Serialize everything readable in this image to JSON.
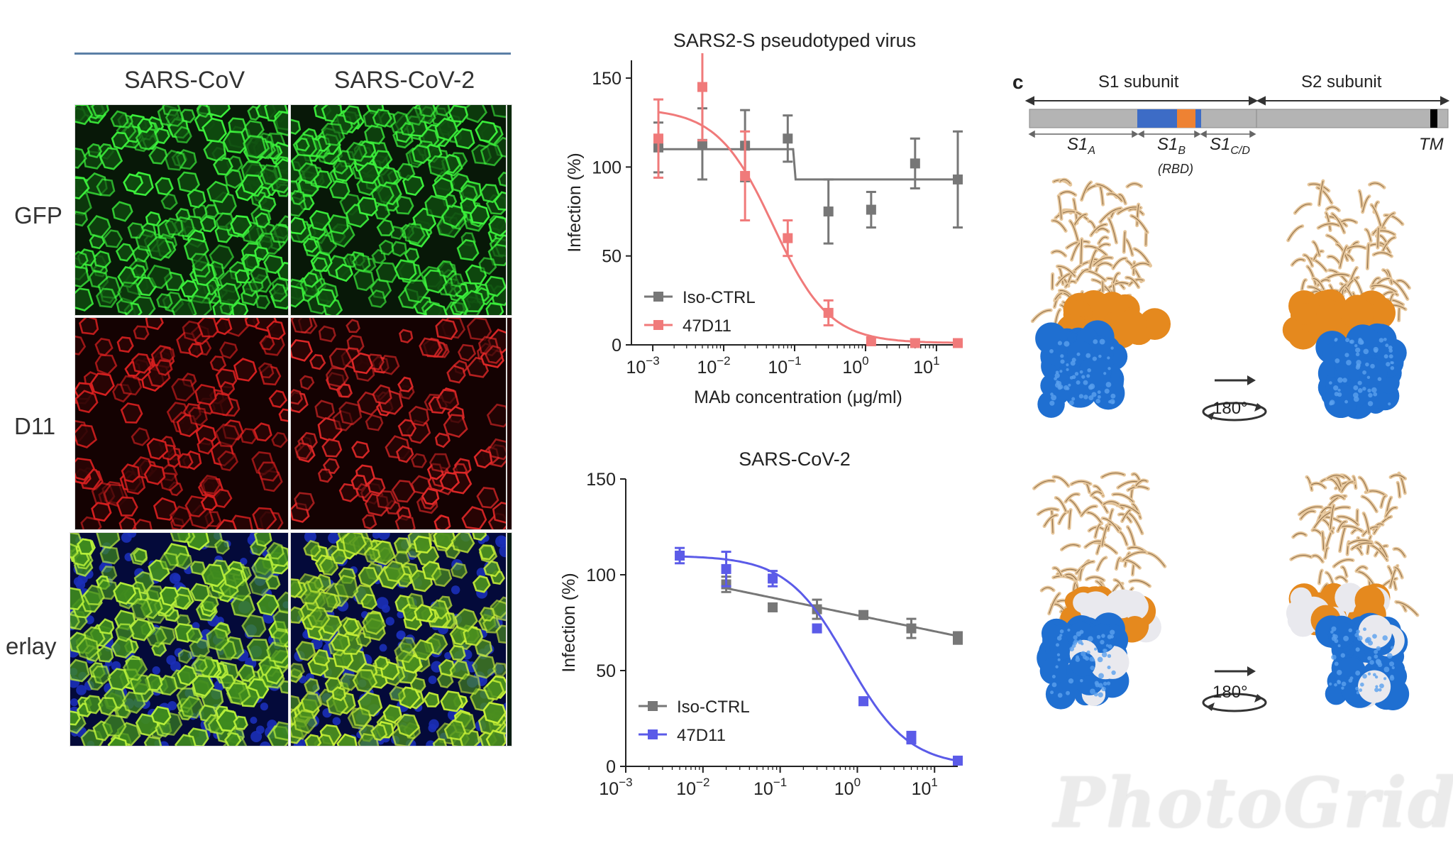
{
  "microscopy": {
    "columns": [
      "SARS-CoV",
      "SARS-CoV-2"
    ],
    "rows": [
      "GFP",
      "D11",
      "erlay"
    ]
  },
  "chart_data": [
    {
      "type": "line",
      "title": "SARS2-S pseudotyped virus",
      "xlabel": "MAb concentration (μg/ml)",
      "ylabel": "Infection (%)",
      "xscale": "log",
      "xlim": [
        0.0005,
        20
      ],
      "ylim": [
        0,
        160
      ],
      "yticks": [
        0,
        50,
        100,
        150
      ],
      "xticks": [
        {
          "base": "10",
          "exp": "−3"
        },
        {
          "base": "10",
          "exp": "−2"
        },
        {
          "base": "10",
          "exp": "−1"
        },
        {
          "base": "10",
          "exp": "0"
        },
        {
          "base": "10",
          "exp": "1"
        }
      ],
      "legend_position": "bottom-left",
      "series": [
        {
          "name": "Iso-CTRL",
          "color": "#777777",
          "x": [
            0.0012,
            0.005,
            0.02,
            0.08,
            0.3,
            1.2,
            5,
            20
          ],
          "y": [
            111,
            113,
            112,
            116,
            75,
            76,
            102,
            93
          ],
          "err": [
            14,
            20,
            20,
            13,
            18,
            10,
            14,
            27
          ],
          "fit": "step",
          "fit_levels": [
            110,
            93
          ],
          "fit_break": 0.1
        },
        {
          "name": "47D11",
          "color": "#f07a7a",
          "x": [
            0.0012,
            0.005,
            0.02,
            0.08,
            0.3,
            1.2,
            5,
            20
          ],
          "y": [
            116,
            145,
            95,
            60,
            18,
            2,
            1,
            1
          ],
          "err": [
            22,
            30,
            25,
            10,
            7,
            2,
            2,
            2
          ],
          "fit": "sigmoid",
          "fit_top": 133,
          "fit_bottom": 1,
          "fit_ec50": 0.05,
          "fit_hill": 1.1
        }
      ]
    },
    {
      "type": "line",
      "title": "SARS-CoV-2",
      "xlabel": "",
      "ylabel": "Infection (%)",
      "xscale": "log",
      "xlim": [
        0.001,
        20
      ],
      "ylim": [
        0,
        150
      ],
      "yticks": [
        0,
        50,
        100,
        150
      ],
      "xticks": [
        {
          "base": "10",
          "exp": "−3"
        },
        {
          "base": "10",
          "exp": "−2"
        },
        {
          "base": "10",
          "exp": "−1"
        },
        {
          "base": "10",
          "exp": "0"
        },
        {
          "base": "10",
          "exp": "1"
        }
      ],
      "legend_position": "bottom-left",
      "series": [
        {
          "name": "Iso-CTRL",
          "color": "#777777",
          "x": [
            0.02,
            0.08,
            0.3,
            1.2,
            5,
            20
          ],
          "y": [
            95,
            83,
            82,
            79,
            72,
            67
          ],
          "err": [
            4,
            2,
            5,
            2,
            5,
            3
          ],
          "fit": "loglinear",
          "fit_from": [
            0.02,
            93
          ],
          "fit_to": [
            20,
            68
          ]
        },
        {
          "name": "47D11",
          "color": "#5b5be8",
          "x": [
            0.005,
            0.02,
            0.08,
            0.3,
            1.2,
            5,
            20
          ],
          "y": [
            110,
            103,
            98,
            72,
            34,
            15,
            3
          ],
          "err": [
            4,
            9,
            4,
            2,
            2,
            3,
            2
          ],
          "fit": "sigmoid",
          "fit_top": 110,
          "fit_bottom": 0,
          "fit_ec50": 0.75,
          "fit_hill": 1.1
        }
      ]
    }
  ],
  "spike": {
    "panel_letter": "c",
    "s1_label": "S1 subunit",
    "s2_label": "S2 subunit",
    "domains": [
      {
        "base": "S1",
        "sub": "A"
      },
      {
        "base": "S1",
        "sub": "B"
      },
      {
        "base": "S1",
        "sub": "C/D"
      }
    ],
    "rbd_label": "(RBD)",
    "tm_label": "TM",
    "rotation_label": "180°",
    "colors": {
      "bar": "#b4b4b4",
      "rbd": "#3d6cc6",
      "core": "#ee8233",
      "tm": "#000000",
      "cartoon": "#e6c69b",
      "surface_blue": "#1f6fd1",
      "surface_orange": "#e5891e"
    }
  },
  "watermark": "PhotoGrid"
}
